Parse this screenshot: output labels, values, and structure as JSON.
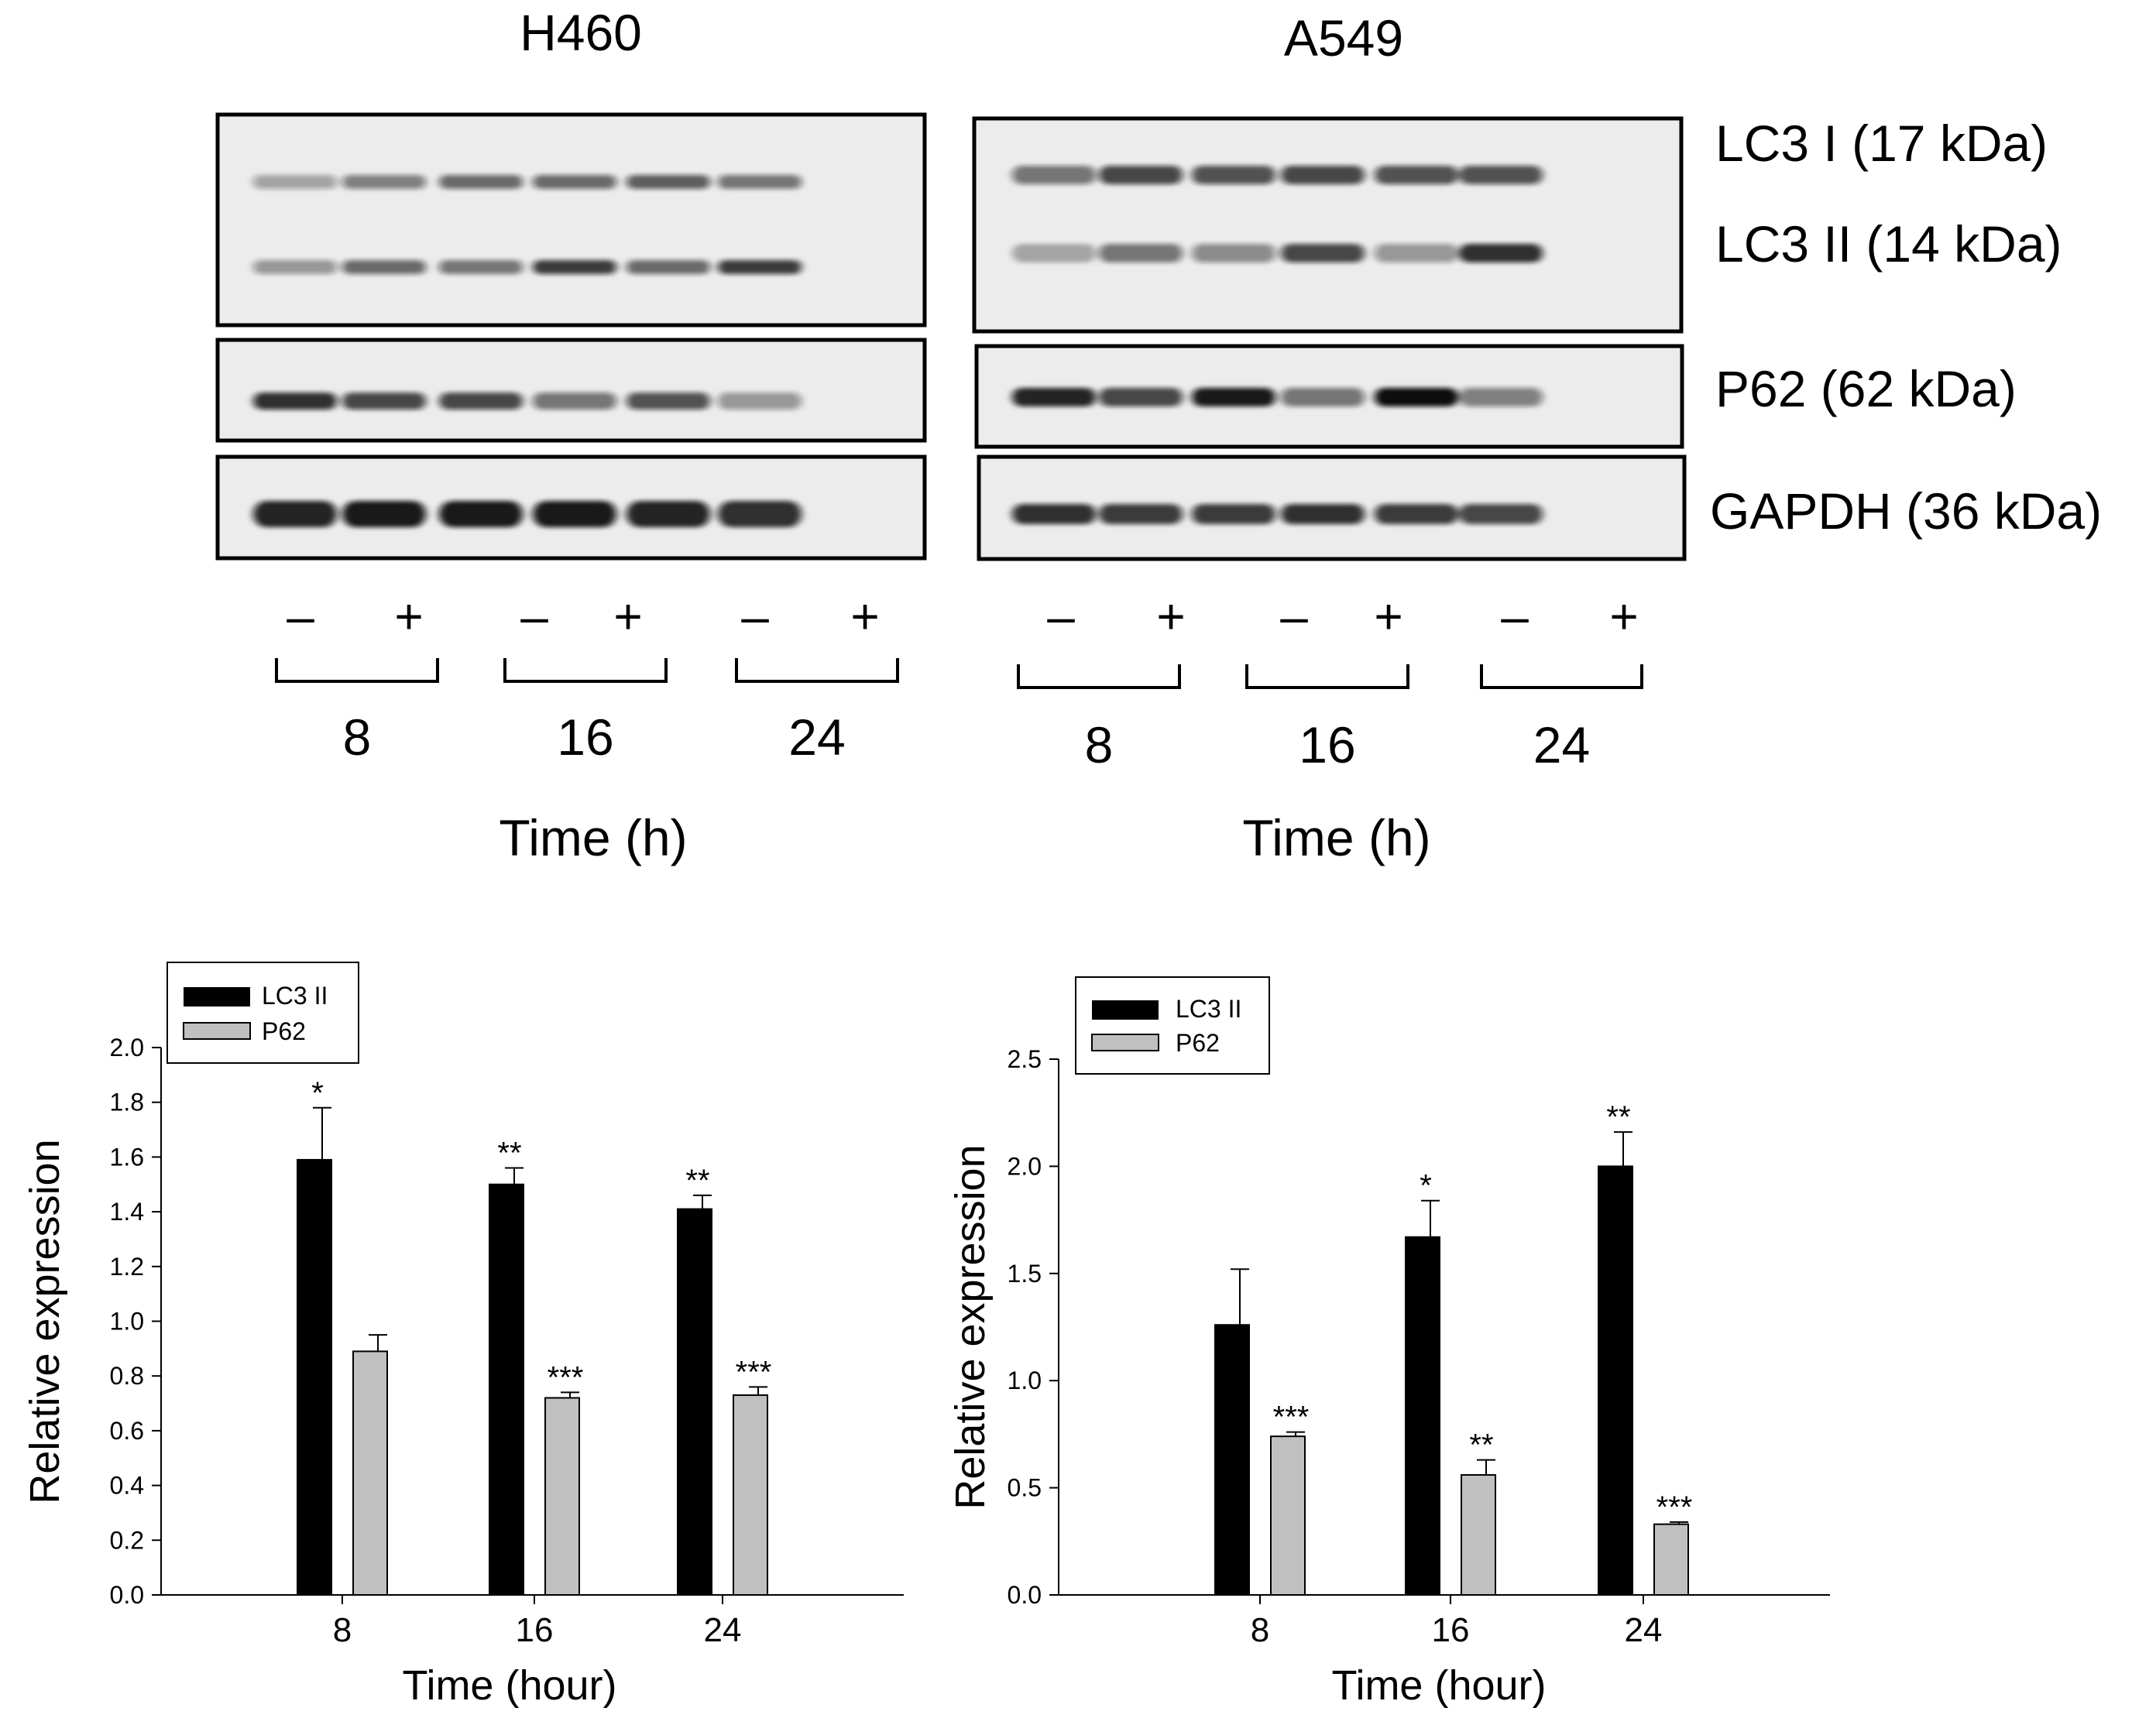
{
  "blots": [
    {
      "cell_line": "H460",
      "conditions": [
        "–",
        "+",
        "–",
        "+",
        "–",
        "+"
      ],
      "time_points": [
        "8",
        "16",
        "24"
      ],
      "time_label": "Time (h)"
    },
    {
      "cell_line": "A549",
      "conditions": [
        "–",
        "+",
        "–",
        "+",
        "–",
        "+"
      ],
      "time_points": [
        "8",
        "16",
        "24"
      ],
      "time_label": "Time (h)"
    }
  ],
  "band_labels": [
    "LC3 I (17 kDa)",
    "LC3 II (14 kDa)",
    "P62 (62 kDa)",
    "GAPDH (36 kDa)"
  ],
  "colors": {
    "lc3ii": "#000000",
    "p62": "#c0c0c0"
  },
  "chart_data": [
    {
      "type": "bar",
      "categories": [
        "8",
        "16",
        "24"
      ],
      "series": [
        {
          "name": "LC3 II",
          "values": [
            1.59,
            1.5,
            1.41
          ],
          "errors": [
            0.19,
            0.06,
            0.05
          ],
          "significance": [
            "*",
            "**",
            "**"
          ]
        },
        {
          "name": "P62",
          "values": [
            0.89,
            0.72,
            0.73
          ],
          "errors": [
            0.06,
            0.02,
            0.03
          ],
          "significance": [
            "",
            "***",
            "***"
          ]
        }
      ],
      "xlabel": "Time (hour)",
      "ylabel": "Relative expression",
      "ylim": [
        0,
        2.0
      ],
      "yticks": [
        "0.0",
        "0.2",
        "0.4",
        "0.6",
        "0.8",
        "1.0",
        "1.2",
        "1.4",
        "1.6",
        "1.8",
        "2.0"
      ],
      "legend": "top-left",
      "grid": false
    },
    {
      "type": "bar",
      "categories": [
        "8",
        "16",
        "24"
      ],
      "series": [
        {
          "name": "LC3 II",
          "values": [
            1.26,
            1.67,
            2.0
          ],
          "errors": [
            0.26,
            0.17,
            0.16
          ],
          "significance": [
            "",
            "*",
            "**"
          ]
        },
        {
          "name": "P62",
          "values": [
            0.74,
            0.56,
            0.33
          ],
          "errors": [
            0.02,
            0.07,
            0.01
          ],
          "significance": [
            "***",
            "**",
            "***"
          ]
        }
      ],
      "xlabel": "Time (hour)",
      "ylabel": "Relative expression",
      "ylim": [
        0,
        2.5
      ],
      "yticks": [
        "0.0",
        "0.5",
        "1.0",
        "1.5",
        "2.0",
        "2.5"
      ],
      "legend": "top-left",
      "grid": false
    }
  ]
}
